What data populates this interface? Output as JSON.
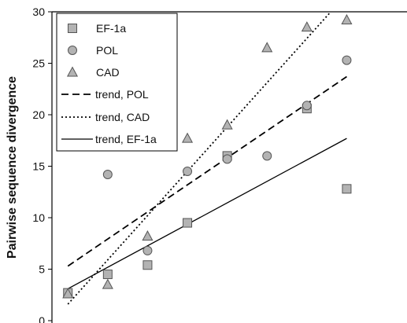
{
  "chart_data": {
    "type": "scatter",
    "title": "",
    "ylabel": "Pairwise sequence divergence",
    "xlabel": "",
    "ylim": [
      0,
      30
    ],
    "yticks": [
      0,
      5,
      10,
      15,
      20,
      25,
      30
    ],
    "grid": false,
    "legend_position": "top-left",
    "series": [
      {
        "name": "EF-1a",
        "marker": "square",
        "points": [
          [
            1,
            2.7
          ],
          [
            2,
            4.5
          ],
          [
            3,
            5.4
          ],
          [
            4,
            9.5
          ],
          [
            5,
            16.0
          ],
          [
            7,
            20.6
          ],
          [
            8,
            12.8
          ]
        ]
      },
      {
        "name": "POL",
        "marker": "circle",
        "points": [
          [
            2,
            14.2
          ],
          [
            3,
            6.8
          ],
          [
            4,
            14.5
          ],
          [
            5,
            15.7
          ],
          [
            6,
            16.0
          ],
          [
            7,
            20.9
          ],
          [
            8,
            25.3
          ]
        ]
      },
      {
        "name": "CAD",
        "marker": "triangle",
        "points": [
          [
            1,
            2.6
          ],
          [
            2,
            3.5
          ],
          [
            3,
            8.2
          ],
          [
            4,
            17.7
          ],
          [
            5,
            19.0
          ],
          [
            6,
            26.5
          ],
          [
            7,
            28.5
          ],
          [
            8,
            29.2
          ]
        ]
      }
    ],
    "trendlines": [
      {
        "name": "trend, POL",
        "style": "dashed",
        "from": [
          1,
          5.3
        ],
        "to": [
          8,
          23.7
        ]
      },
      {
        "name": "trend, CAD",
        "style": "dotted",
        "from": [
          1,
          1.6
        ],
        "to": [
          7.6,
          30.0
        ]
      },
      {
        "name": "trend, EF-1a",
        "style": "solid",
        "from": [
          1,
          3.1
        ],
        "to": [
          8,
          17.7
        ]
      }
    ],
    "legend": [
      "EF-1a",
      "POL",
      "CAD",
      "trend, POL",
      "trend, CAD",
      "trend, EF-1a"
    ],
    "colors": {
      "marker_fill": "#b3b3b3",
      "marker_stroke": "#555555",
      "line": "#000000"
    }
  }
}
